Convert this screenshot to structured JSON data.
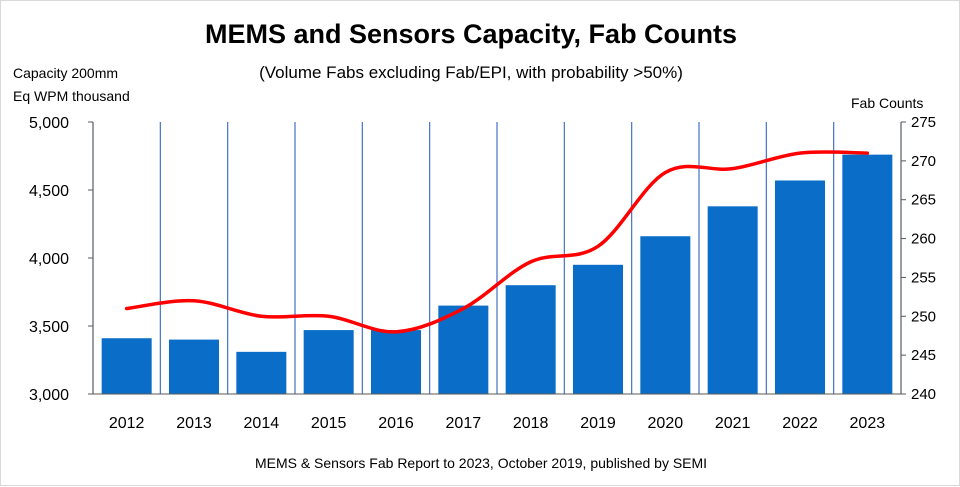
{
  "chart_data": {
    "type": "bar",
    "title": "MEMS and Sensors Capacity, Fab Counts",
    "subtitle": "(Volume Fabs excluding Fab/EPI, with probability >50%)",
    "ylabel_left_line1": "Capacity 200mm",
    "ylabel_left_line2": "Eq WPM thousand",
    "ylabel_right": "Fab Counts",
    "source": "MEMS & Sensors Fab Report to 2023, October 2019, published by SEMI",
    "categories": [
      "2012",
      "2013",
      "2014",
      "2015",
      "2016",
      "2017",
      "2018",
      "2019",
      "2020",
      "2021",
      "2022",
      "2023"
    ],
    "ylim_left": [
      3000,
      5000
    ],
    "yticks_left": [
      3000,
      3500,
      4000,
      4500,
      5000
    ],
    "ytick_labels_left": [
      "3,000",
      "3,500",
      "4,000",
      "4,500",
      "5,000"
    ],
    "ylim_right": [
      240,
      275
    ],
    "yticks_right": [
      240,
      245,
      250,
      255,
      260,
      265,
      270,
      275
    ],
    "ytick_labels_right": [
      "240",
      "245",
      "250",
      "255",
      "260",
      "265",
      "270",
      "275"
    ],
    "grid": "vertical",
    "series": [
      {
        "type": "bar",
        "axis": "left",
        "color": "#0a6ec8",
        "values": [
          3410,
          3400,
          3310,
          3470,
          3470,
          3650,
          3800,
          3950,
          4160,
          4380,
          4570,
          4760
        ]
      },
      {
        "type": "line",
        "axis": "right",
        "color": "#ff0000",
        "values": [
          251,
          252,
          250,
          250,
          248,
          251,
          257,
          259,
          268.5,
          269,
          271,
          271
        ]
      }
    ],
    "axis_color": "#000000",
    "gridline_color": "#4472c4"
  }
}
